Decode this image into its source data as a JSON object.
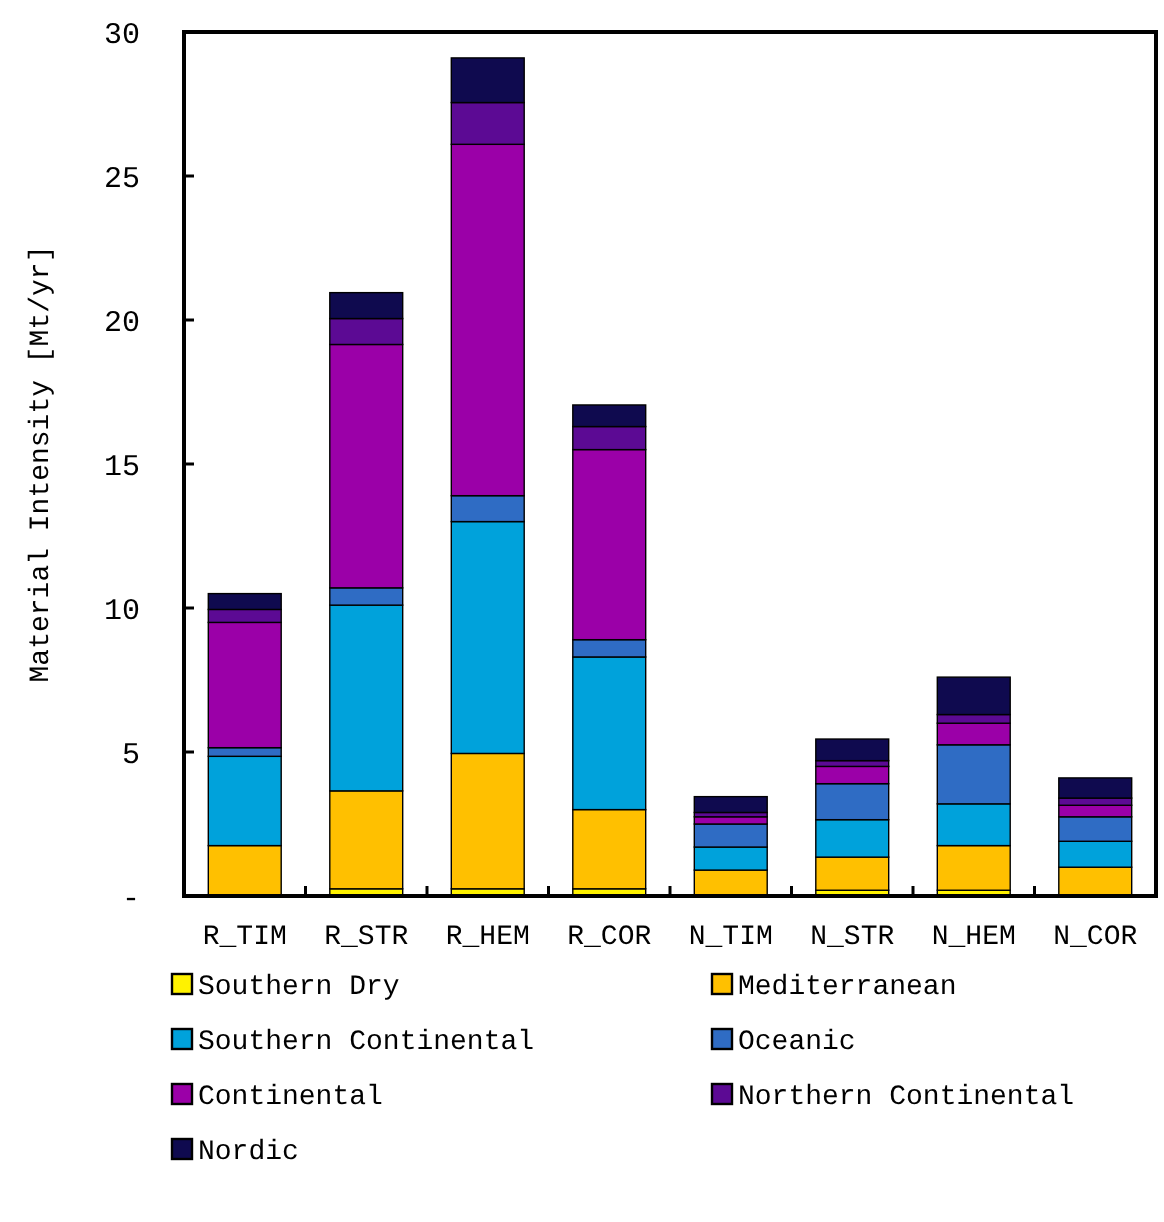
{
  "chart_data": {
    "type": "bar",
    "stacked": true,
    "ylabel": "Material Intensity [Mt/yr]",
    "categories": [
      "R_TIM",
      "R_STR",
      "R_HEM",
      "R_COR",
      "N_TIM",
      "N_STR",
      "N_HEM",
      "N_COR"
    ],
    "series": [
      {
        "name": "Southern Dry",
        "color": "#fff200",
        "values": [
          0,
          0.25,
          0.25,
          0.25,
          0,
          0.2,
          0.2,
          0
        ]
      },
      {
        "name": "Mediterranean",
        "color": "#ffc000",
        "values": [
          1.75,
          3.4,
          4.7,
          2.75,
          0.9,
          1.15,
          1.55,
          1.0
        ]
      },
      {
        "name": "Southern Continental",
        "color": "#00a2db",
        "values": [
          3.1,
          6.45,
          8.05,
          5.3,
          0.8,
          1.3,
          1.45,
          0.9
        ]
      },
      {
        "name": "Oceanic",
        "color": "#2f6cc4",
        "values": [
          0.3,
          0.6,
          0.9,
          0.6,
          0.8,
          1.25,
          2.05,
          0.85
        ]
      },
      {
        "name": "Continental",
        "color": "#9b00a8",
        "values": [
          4.35,
          8.45,
          12.2,
          6.6,
          0.25,
          0.6,
          0.75,
          0.4
        ]
      },
      {
        "name": "Northern Continental",
        "color": "#5c0a94",
        "values": [
          0.45,
          0.9,
          1.45,
          0.8,
          0.15,
          0.2,
          0.3,
          0.25
        ]
      },
      {
        "name": "Nordic",
        "color": "#0f0a4f",
        "values": [
          0.55,
          0.9,
          1.55,
          0.75,
          0.55,
          0.75,
          1.3,
          0.7
        ]
      }
    ],
    "ylim": [
      0,
      30
    ],
    "yticks": [
      {
        "value": 0,
        "label": "-"
      },
      5,
      10,
      15,
      20,
      25,
      30
    ],
    "grid": false,
    "legend": "bottom"
  }
}
